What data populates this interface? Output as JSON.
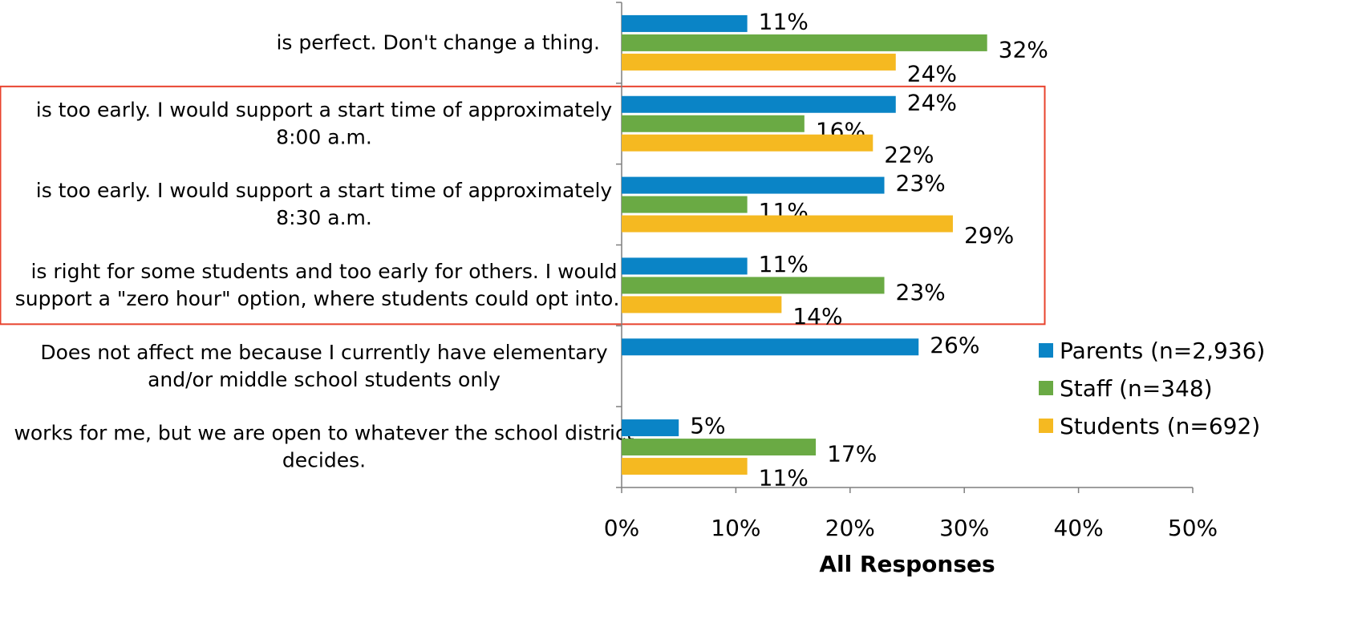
{
  "chart_data": {
    "type": "bar",
    "orientation": "horizontal",
    "categories": [
      [
        "is perfect. Don't change a thing."
      ],
      [
        "is too early. I would support a start time of approximately",
        "8:00 a.m."
      ],
      [
        "is too early. I would support a start time of approximately",
        "8:30 a.m."
      ],
      [
        "is right for some students and too early for others. I would",
        "support a \"zero hour\" option, where students could opt into…"
      ],
      [
        "Does not affect me because I currently have elementary",
        "and/or middle school students only"
      ],
      [
        "works for me, but we are open to whatever the school district",
        "decides."
      ]
    ],
    "series": [
      {
        "name": "Parents (n=2,936)",
        "color": "#0a84c6",
        "values": [
          11,
          24,
          23,
          11,
          26,
          5
        ],
        "labels": [
          "11%",
          "24%",
          "23%",
          "11%",
          "26%",
          "5%"
        ]
      },
      {
        "name": "Staff (n=348)",
        "color": "#6aaa44",
        "values": [
          32,
          16,
          11,
          23,
          null,
          17
        ],
        "labels": [
          "32%",
          "16%",
          "11%",
          "23%",
          "",
          "17%"
        ]
      },
      {
        "name": "Students (n=692)",
        "color": "#f5b921",
        "values": [
          24,
          22,
          29,
          14,
          null,
          11
        ],
        "labels": [
          "24%",
          "22%",
          "29%",
          "14%",
          "",
          "11%"
        ]
      }
    ],
    "xlim": [
      0,
      50
    ],
    "xticks": [
      0,
      10,
      20,
      30,
      40,
      50
    ],
    "xtick_labels": [
      "0%",
      "10%",
      "20%",
      "30%",
      "40%",
      "50%"
    ],
    "xlabel": "All Responses",
    "legend_position": "right",
    "highlight_categories": [
      1,
      2,
      3
    ],
    "highlight_color": "#e8432e",
    "grid": false
  }
}
